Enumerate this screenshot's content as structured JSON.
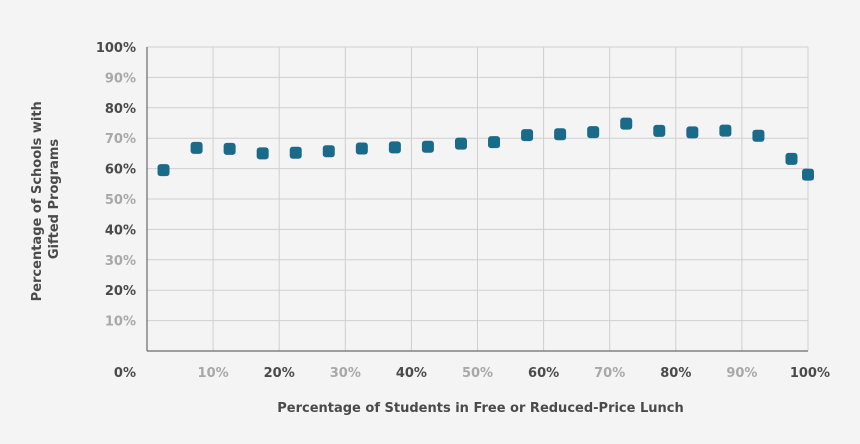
{
  "chart_data": {
    "type": "scatter",
    "title": "",
    "xlabel": "Percentage of Students in Free or Reduced-Price Lunch",
    "ylabel_lines": [
      "Percentage of Schools with",
      "Gifted Programs"
    ],
    "xlim": [
      0,
      100
    ],
    "ylim": [
      0,
      100
    ],
    "x_ticks": [
      {
        "value": 0,
        "label": "0%",
        "style": "strong"
      },
      {
        "value": 10,
        "label": "10%",
        "style": "light"
      },
      {
        "value": 20,
        "label": "20%",
        "style": "strong"
      },
      {
        "value": 30,
        "label": "30%",
        "style": "light"
      },
      {
        "value": 40,
        "label": "40%",
        "style": "strong"
      },
      {
        "value": 50,
        "label": "50%",
        "style": "light"
      },
      {
        "value": 60,
        "label": "60%",
        "style": "strong"
      },
      {
        "value": 70,
        "label": "70%",
        "style": "light"
      },
      {
        "value": 80,
        "label": "80%",
        "style": "strong"
      },
      {
        "value": 90,
        "label": "90%",
        "style": "light"
      },
      {
        "value": 100,
        "label": "100%",
        "style": "strong"
      }
    ],
    "y_ticks": [
      {
        "value": 10,
        "label": "10%",
        "style": "light"
      },
      {
        "value": 20,
        "label": "20%",
        "style": "strong"
      },
      {
        "value": 30,
        "label": "30%",
        "style": "light"
      },
      {
        "value": 40,
        "label": "40%",
        "style": "strong"
      },
      {
        "value": 50,
        "label": "50%",
        "style": "light"
      },
      {
        "value": 60,
        "label": "60%",
        "style": "strong"
      },
      {
        "value": 70,
        "label": "70%",
        "style": "light"
      },
      {
        "value": 80,
        "label": "80%",
        "style": "strong"
      },
      {
        "value": 90,
        "label": "90%",
        "style": "light"
      },
      {
        "value": 100,
        "label": "100%",
        "style": "strong"
      }
    ],
    "grid": true,
    "marker_color": "#1a6a8a",
    "points": [
      {
        "x": 2.5,
        "y": 59.5
      },
      {
        "x": 7.5,
        "y": 66.8
      },
      {
        "x": 12.5,
        "y": 66.5
      },
      {
        "x": 17.5,
        "y": 65.0
      },
      {
        "x": 22.5,
        "y": 65.2
      },
      {
        "x": 27.5,
        "y": 65.7
      },
      {
        "x": 32.5,
        "y": 66.6
      },
      {
        "x": 37.5,
        "y": 67.0
      },
      {
        "x": 42.5,
        "y": 67.2
      },
      {
        "x": 47.5,
        "y": 68.2
      },
      {
        "x": 52.5,
        "y": 68.7
      },
      {
        "x": 57.5,
        "y": 71.0
      },
      {
        "x": 62.5,
        "y": 71.3
      },
      {
        "x": 67.5,
        "y": 72.0
      },
      {
        "x": 72.5,
        "y": 74.8
      },
      {
        "x": 77.5,
        "y": 72.4
      },
      {
        "x": 82.5,
        "y": 71.9
      },
      {
        "x": 87.5,
        "y": 72.5
      },
      {
        "x": 92.5,
        "y": 70.8
      },
      {
        "x": 97.5,
        "y": 63.2
      },
      {
        "x": 100,
        "y": 58.0
      }
    ]
  }
}
